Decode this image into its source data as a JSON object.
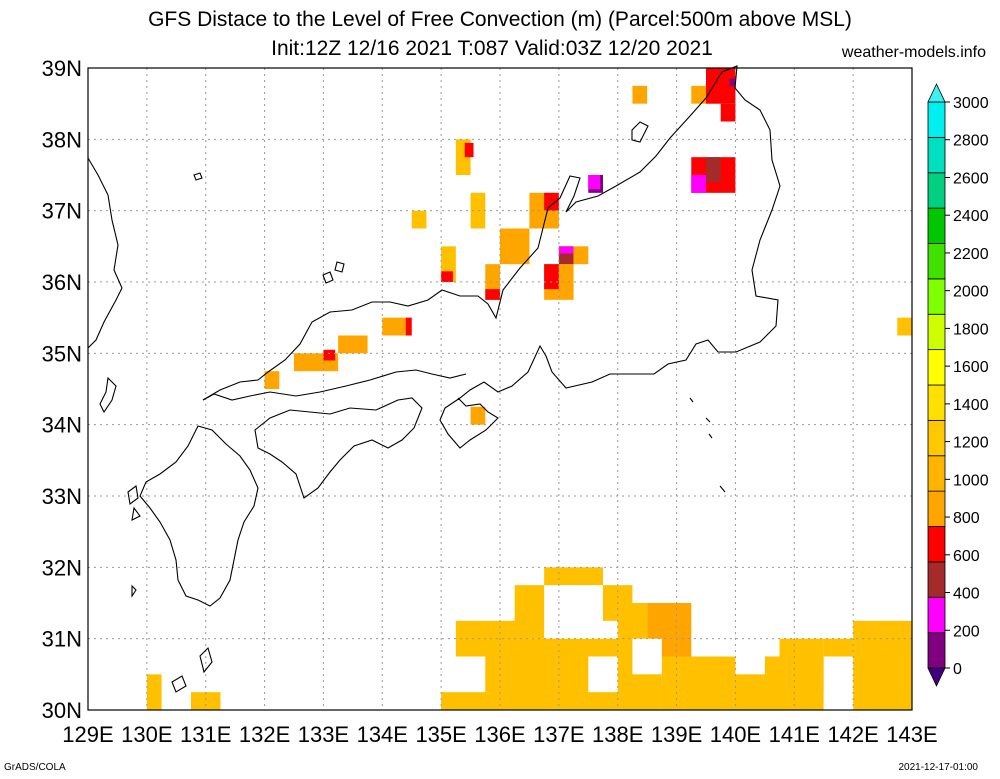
{
  "title_line1": "GFS Distace to the Level of Free Convection (m) (Parcel:500m above MSL)",
  "title_line2": "Init:12Z 12/16 2021 T:087 Valid:03Z 12/20 2021",
  "site": "weather-models.info",
  "footer_left": "GrADS/COLA",
  "footer_right": "2021-12-17-01:00",
  "lat_labels": [
    "39N",
    "38N",
    "37N",
    "36N",
    "35N",
    "34N",
    "33N",
    "32N",
    "31N",
    "30N"
  ],
  "lon_labels": [
    "129E",
    "130E",
    "131E",
    "132E",
    "133E",
    "134E",
    "135E",
    "136E",
    "137E",
    "138E",
    "139E",
    "140E",
    "141E",
    "142E",
    "143E"
  ],
  "colorbar_labels": [
    "3000",
    "2800",
    "2600",
    "2400",
    "2200",
    "2000",
    "1800",
    "1600",
    "1400",
    "1200",
    "1000",
    "800",
    "600",
    "400",
    "200",
    "0"
  ],
  "colorbar_colors": [
    "#800080",
    "#ff00ff",
    "#a52a2a",
    "#ff0000",
    "#ffa500",
    "#ffb400",
    "#ffc800",
    "#ffe000",
    "#ffff00",
    "#cdff00",
    "#80ff00",
    "#40e000",
    "#00c800",
    "#00d080",
    "#00e0c0",
    "#00f0f0"
  ],
  "colors": {
    "fill_main": "#ffc000",
    "fill_orange": "#ffa500",
    "fill_red": "#ff0000",
    "fill_brown": "#a52a2a",
    "fill_magenta": "#ff00ff",
    "fill_purple": "#800080"
  },
  "field_cells": [
    {
      "lon": 135.0,
      "lat": 30.0,
      "w": 1.0,
      "h": 0.25,
      "c": "fill_main"
    },
    {
      "lon": 135.25,
      "lat": 30.75,
      "w": 1.25,
      "h": 0.5,
      "c": "fill_main"
    },
    {
      "lon": 135.75,
      "lat": 30.0,
      "w": 3.0,
      "h": 1.0,
      "c": "fill_main"
    },
    {
      "lon": 136.25,
      "lat": 31.0,
      "w": 0.75,
      "h": 0.75,
      "c": "fill_main"
    },
    {
      "lon": 136.75,
      "lat": 31.75,
      "w": 1.0,
      "h": 0.25,
      "c": "fill_main"
    },
    {
      "lon": 137.75,
      "lat": 31.25,
      "w": 0.5,
      "h": 0.5,
      "c": "fill_main"
    },
    {
      "lon": 138.0,
      "lat": 30.25,
      "w": 0.5,
      "h": 1.25,
      "c": "fill_main"
    },
    {
      "lon": 138.5,
      "lat": 30.5,
      "w": 0.75,
      "h": 1.0,
      "c": "fill_orange"
    },
    {
      "lon": 138.75,
      "lat": 30.0,
      "w": 1.75,
      "h": 0.75,
      "c": "fill_main"
    },
    {
      "lon": 140.25,
      "lat": 30.0,
      "w": 0.5,
      "h": 0.5,
      "c": "fill_main"
    },
    {
      "lon": 140.5,
      "lat": 30.0,
      "w": 0.75,
      "h": 0.75,
      "c": "fill_main"
    },
    {
      "lon": 140.75,
      "lat": 30.0,
      "w": 0.75,
      "h": 1.0,
      "c": "fill_main"
    },
    {
      "lon": 141.5,
      "lat": 30.25,
      "w": 0.5,
      "h": 0.75,
      "c": "fill_main"
    },
    {
      "lon": 142.0,
      "lat": 30.0,
      "w": 1.0,
      "h": 1.25,
      "c": "fill_main"
    },
    {
      "lon": 130.0,
      "lat": 30.0,
      "w": 0.25,
      "h": 0.5,
      "c": "fill_main"
    },
    {
      "lon": 130.75,
      "lat": 30.0,
      "w": 0.5,
      "h": 0.25,
      "c": "fill_main"
    },
    {
      "lon": 142.75,
      "lat": 35.25,
      "w": 0.25,
      "h": 0.25,
      "c": "fill_main"
    },
    {
      "lon": 132.0,
      "lat": 34.5,
      "w": 0.25,
      "h": 0.25,
      "c": "fill_orange"
    },
    {
      "lon": 132.5,
      "lat": 34.75,
      "w": 0.75,
      "h": 0.25,
      "c": "fill_orange"
    },
    {
      "lon": 133.0,
      "lat": 34.9,
      "w": 0.2,
      "h": 0.15,
      "c": "fill_red"
    },
    {
      "lon": 133.25,
      "lat": 35.0,
      "w": 0.5,
      "h": 0.25,
      "c": "fill_orange"
    },
    {
      "lon": 134.0,
      "lat": 35.25,
      "w": 0.5,
      "h": 0.25,
      "c": "fill_orange"
    },
    {
      "lon": 134.4,
      "lat": 35.25,
      "w": 0.1,
      "h": 0.25,
      "c": "fill_red"
    },
    {
      "lon": 134.5,
      "lat": 36.75,
      "w": 0.25,
      "h": 0.25,
      "c": "fill_main"
    },
    {
      "lon": 135.0,
      "lat": 36.0,
      "w": 0.25,
      "h": 0.5,
      "c": "fill_main"
    },
    {
      "lon": 135.0,
      "lat": 36.0,
      "w": 0.2,
      "h": 0.15,
      "c": "fill_red"
    },
    {
      "lon": 135.25,
      "lat": 37.5,
      "w": 0.25,
      "h": 0.5,
      "c": "fill_main"
    },
    {
      "lon": 135.4,
      "lat": 37.75,
      "w": 0.15,
      "h": 0.2,
      "c": "fill_red"
    },
    {
      "lon": 135.5,
      "lat": 36.75,
      "w": 0.25,
      "h": 0.5,
      "c": "fill_main"
    },
    {
      "lon": 135.75,
      "lat": 35.75,
      "w": 0.25,
      "h": 0.5,
      "c": "fill_orange"
    },
    {
      "lon": 135.75,
      "lat": 35.75,
      "w": 0.25,
      "h": 0.15,
      "c": "fill_red"
    },
    {
      "lon": 136.0,
      "lat": 36.25,
      "w": 0.5,
      "h": 0.5,
      "c": "fill_orange"
    },
    {
      "lon": 136.5,
      "lat": 36.75,
      "w": 0.5,
      "h": 0.5,
      "c": "fill_orange"
    },
    {
      "lon": 136.75,
      "lat": 37.0,
      "w": 0.25,
      "h": 0.25,
      "c": "fill_red"
    },
    {
      "lon": 136.75,
      "lat": 35.75,
      "w": 0.5,
      "h": 0.5,
      "c": "fill_orange"
    },
    {
      "lon": 136.75,
      "lat": 35.9,
      "w": 0.25,
      "h": 0.35,
      "c": "fill_red"
    },
    {
      "lon": 137.0,
      "lat": 36.25,
      "w": 0.25,
      "h": 0.25,
      "c": "fill_brown"
    },
    {
      "lon": 137.0,
      "lat": 36.4,
      "w": 0.25,
      "h": 0.1,
      "c": "fill_magenta"
    },
    {
      "lon": 137.25,
      "lat": 36.25,
      "w": 0.25,
      "h": 0.25,
      "c": "fill_orange"
    },
    {
      "lon": 137.5,
      "lat": 37.25,
      "w": 0.25,
      "h": 0.25,
      "c": "fill_purple"
    },
    {
      "lon": 137.5,
      "lat": 37.3,
      "w": 0.2,
      "h": 0.2,
      "c": "fill_magenta"
    },
    {
      "lon": 138.25,
      "lat": 38.5,
      "w": 0.25,
      "h": 0.25,
      "c": "fill_orange"
    },
    {
      "lon": 139.25,
      "lat": 38.5,
      "w": 0.5,
      "h": 0.25,
      "c": "fill_orange"
    },
    {
      "lon": 139.5,
      "lat": 38.5,
      "w": 0.5,
      "h": 0.5,
      "c": "fill_red"
    },
    {
      "lon": 139.75,
      "lat": 38.25,
      "w": 0.25,
      "h": 0.25,
      "c": "fill_red"
    },
    {
      "lon": 139.25,
      "lat": 37.25,
      "w": 0.75,
      "h": 0.5,
      "c": "fill_red"
    },
    {
      "lon": 139.25,
      "lat": 37.25,
      "w": 0.25,
      "h": 0.25,
      "c": "fill_magenta"
    },
    {
      "lon": 139.5,
      "lat": 37.4,
      "w": 0.25,
      "h": 0.35,
      "c": "fill_brown"
    },
    {
      "lon": 139.9,
      "lat": 38.75,
      "w": 0.1,
      "h": 0.1,
      "c": "fill_purple"
    },
    {
      "lon": 135.5,
      "lat": 34.0,
      "w": 0.25,
      "h": 0.25,
      "c": "fill_orange"
    }
  ],
  "field_holes": [
    {
      "lon": 136.75,
      "lat": 31.0,
      "w": 1.0,
      "h": 0.75
    },
    {
      "lon": 137.5,
      "lat": 30.25,
      "w": 0.5,
      "h": 0.5
    },
    {
      "lon": 138.25,
      "lat": 30.5,
      "w": 0.5,
      "h": 0.5
    },
    {
      "lon": 140.0,
      "lat": 30.5,
      "w": 0.5,
      "h": 0.5
    },
    {
      "lon": 141.5,
      "lat": 30.0,
      "w": 0.5,
      "h": 0.75
    }
  ]
}
